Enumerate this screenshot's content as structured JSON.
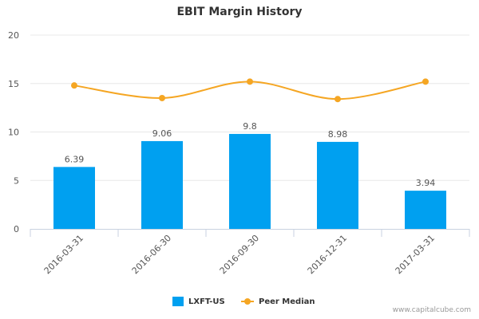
{
  "colors": {
    "bar": "#00a0f0",
    "line": "#f5a623",
    "axis": "#c8d2e0",
    "grid": "#e8e8e8",
    "text": "#555555",
    "title": "#333333"
  },
  "credit": "www.capitalcube.com",
  "chart_data": {
    "type": "bar",
    "title": "EBIT Margin History",
    "xlabel": "",
    "ylabel": "",
    "categories": [
      "2016-03-31",
      "2016-06-30",
      "2016-09-30",
      "2016-12-31",
      "2017-03-31"
    ],
    "ylim": [
      0,
      20
    ],
    "yticks": [
      0,
      5,
      10,
      15,
      20
    ],
    "grid": true,
    "legend": "bottom-center",
    "series": [
      {
        "name": "LXFT-US",
        "type": "bar",
        "values": [
          6.39,
          9.06,
          9.8,
          8.98,
          3.94
        ],
        "labels": [
          "6.39",
          "9.06",
          "9.8",
          "8.98",
          "3.94"
        ]
      },
      {
        "name": "Peer Median",
        "type": "line",
        "values": [
          14.8,
          13.5,
          15.2,
          13.4,
          15.2
        ]
      }
    ]
  }
}
